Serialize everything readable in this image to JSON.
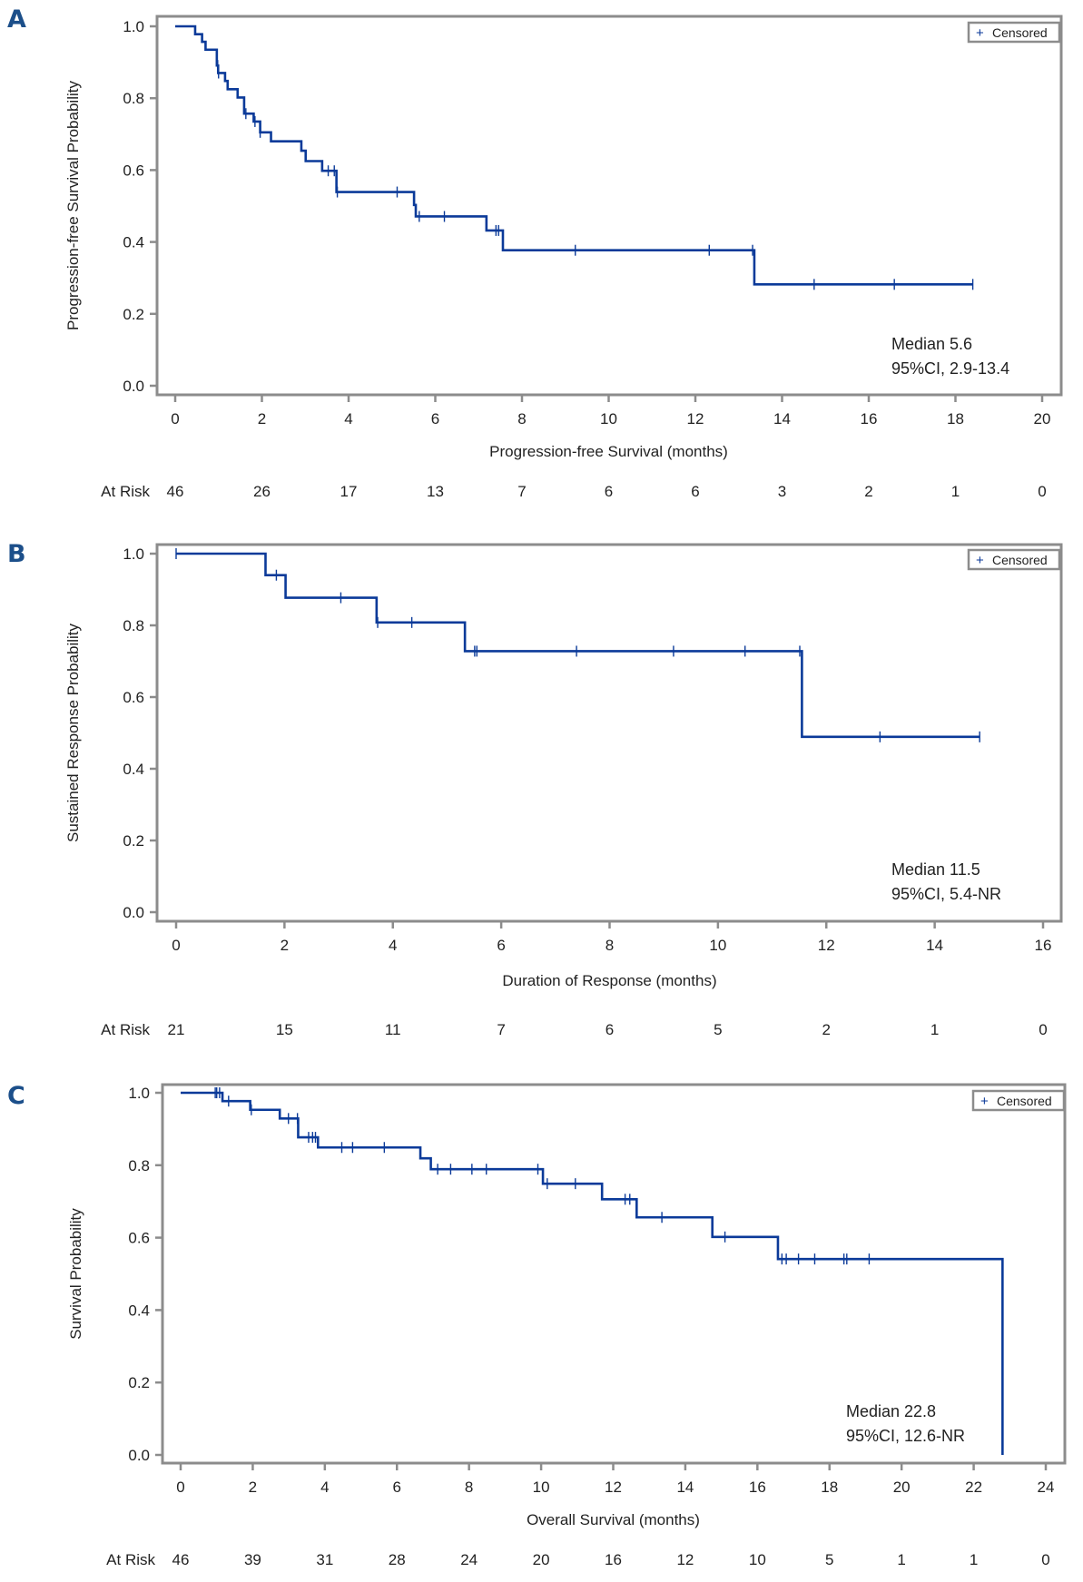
{
  "chart_data": [
    {
      "type": "line",
      "subtype": "kaplan-meier",
      "panel_label": "A",
      "title": "",
      "xlabel": "Progression-free Survival (months)",
      "ylabel": "Progression-free Survival Probability",
      "xlim": [
        0,
        20
      ],
      "ylim": [
        0.0,
        1.0
      ],
      "x_ticks": [
        0,
        2,
        4,
        6,
        8,
        10,
        12,
        14,
        16,
        18,
        20
      ],
      "y_ticks": [
        "0.0",
        "0.2",
        "0.4",
        "0.6",
        "0.8",
        "1.0"
      ],
      "grid": false,
      "legend": {
        "position": "top-right",
        "entries": [
          {
            "symbol": "+",
            "label": "Censored"
          }
        ]
      },
      "annotation": [
        "Median 5.6",
        "95%CI, 2.9-13.4"
      ],
      "at_risk_label": "At Risk",
      "at_risk": [
        46,
        26,
        17,
        13,
        7,
        6,
        6,
        3,
        2,
        1,
        0
      ],
      "steps": [
        [
          0,
          1.0
        ],
        [
          0.46,
          0.978
        ],
        [
          0.62,
          0.957
        ],
        [
          0.7,
          0.935
        ],
        [
          0.96,
          0.891
        ],
        [
          0.99,
          0.87
        ],
        [
          1.15,
          0.848
        ],
        [
          1.21,
          0.825
        ],
        [
          1.44,
          0.802
        ],
        [
          1.59,
          0.757
        ],
        [
          1.81,
          0.735
        ],
        [
          1.96,
          0.705
        ],
        [
          2.21,
          0.68
        ],
        [
          2.91,
          0.654
        ],
        [
          3.01,
          0.625
        ],
        [
          3.39,
          0.598
        ],
        [
          3.72,
          0.539
        ],
        [
          5.51,
          0.503
        ],
        [
          5.55,
          0.471
        ],
        [
          7.18,
          0.432
        ],
        [
          7.56,
          0.377
        ],
        [
          13.36,
          0.282
        ]
      ],
      "end_time": 18.4,
      "censored": [
        0.98,
        1.0,
        1.63,
        1.84,
        1.96,
        3.53,
        3.67,
        3.74,
        5.12,
        5.63,
        6.21,
        7.4,
        7.46,
        9.23,
        12.32,
        13.32,
        14.74,
        16.59,
        18.4
      ]
    },
    {
      "type": "line",
      "subtype": "kaplan-meier",
      "panel_label": "B",
      "title": "",
      "xlabel": "Duration of Response (months)",
      "ylabel": "Sustained Response Probability",
      "xlim": [
        0,
        16
      ],
      "ylim": [
        0.0,
        1.0
      ],
      "x_ticks": [
        0,
        2,
        4,
        6,
        8,
        10,
        12,
        14,
        16
      ],
      "y_ticks": [
        "0.0",
        "0.2",
        "0.4",
        "0.6",
        "0.8",
        "1.0"
      ],
      "grid": false,
      "legend": {
        "position": "top-right",
        "entries": [
          {
            "symbol": "+",
            "label": "Censored"
          }
        ]
      },
      "annotation": [
        "Median 11.5",
        "95%CI, 5.4-NR"
      ],
      "at_risk_label": "At Risk",
      "at_risk": [
        21,
        15,
        11,
        7,
        6,
        5,
        2,
        1,
        0
      ],
      "steps": [
        [
          0,
          1.0
        ],
        [
          1.65,
          0.94
        ],
        [
          2.02,
          0.877
        ],
        [
          3.7,
          0.808
        ],
        [
          5.33,
          0.728
        ],
        [
          11.55,
          0.489
        ]
      ],
      "end_time": 14.83,
      "censored": [
        0.0,
        1.85,
        3.04,
        3.72,
        4.35,
        5.51,
        5.55,
        7.39,
        9.18,
        10.5,
        11.51,
        12.99,
        14.83
      ]
    },
    {
      "type": "line",
      "subtype": "kaplan-meier",
      "panel_label": "C",
      "title": "",
      "xlabel": "Overall Survival (months)",
      "ylabel": "Survival Probability",
      "xlim": [
        0,
        24
      ],
      "ylim": [
        0.0,
        1.0
      ],
      "x_ticks": [
        0,
        2,
        4,
        6,
        8,
        10,
        12,
        14,
        16,
        18,
        20,
        22,
        24
      ],
      "y_ticks": [
        "0.0",
        "0.2",
        "0.4",
        "0.6",
        "0.8",
        "1.0"
      ],
      "grid": false,
      "legend": {
        "position": "top-right",
        "entries": [
          {
            "symbol": "+",
            "label": "Censored"
          }
        ]
      },
      "annotation": [
        "Median 22.8",
        "95%CI, 12.6-NR"
      ],
      "at_risk_label": "At Risk",
      "at_risk": [
        46,
        39,
        31,
        28,
        24,
        20,
        16,
        12,
        10,
        5,
        1,
        1,
        0
      ],
      "steps": [
        [
          0,
          1.0
        ],
        [
          1.16,
          0.977
        ],
        [
          1.93,
          0.953
        ],
        [
          2.75,
          0.929
        ],
        [
          3.26,
          0.877
        ],
        [
          3.81,
          0.849
        ],
        [
          6.65,
          0.819
        ],
        [
          6.94,
          0.789
        ],
        [
          10.05,
          0.749
        ],
        [
          11.69,
          0.706
        ],
        [
          12.65,
          0.656
        ],
        [
          14.75,
          0.602
        ],
        [
          16.57,
          0.541
        ],
        [
          22.8,
          0.0
        ]
      ],
      "end_time": 22.8,
      "censored": [
        0.96,
        1.0,
        1.08,
        1.33,
        1.96,
        2.99,
        3.24,
        3.55,
        3.66,
        3.74,
        4.47,
        4.77,
        5.65,
        7.13,
        7.49,
        8.08,
        8.48,
        9.91,
        10.17,
        10.95,
        12.33,
        12.46,
        13.35,
        15.1,
        16.68,
        16.8,
        17.14,
        17.59,
        18.4,
        18.48,
        19.1
      ]
    }
  ]
}
